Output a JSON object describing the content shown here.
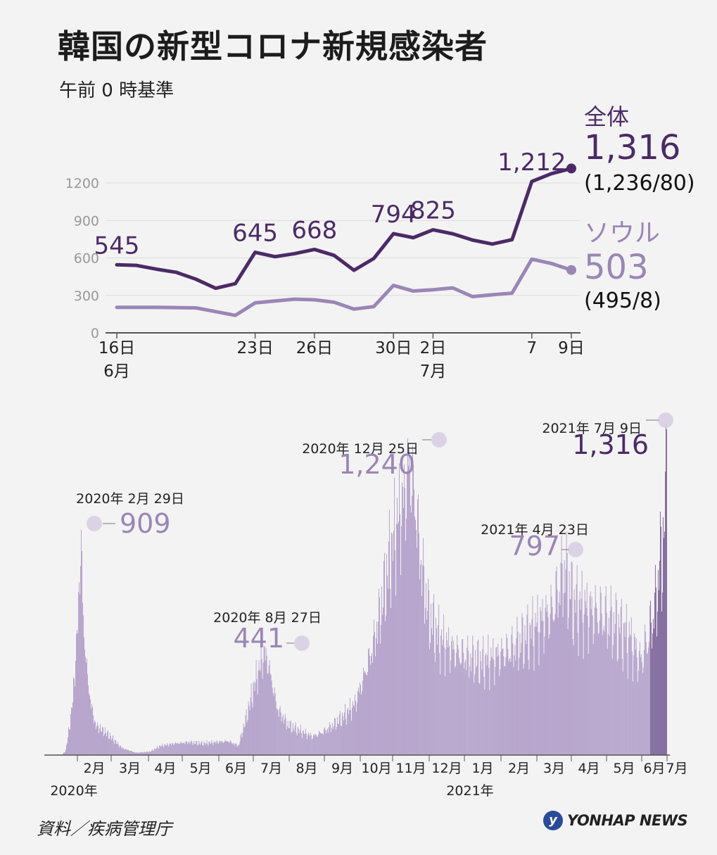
{
  "title": "韓国の新型コロナ新規感染者",
  "subtitle": "午前 0 時基準",
  "source": "資料／疾病管理庁",
  "logo": {
    "text": "YONHAP NEWS",
    "icon": "yonhap-logo-icon"
  },
  "colors": {
    "total": "#4b2a66",
    "seoul": "#9a86b5",
    "bar": "#a994c4",
    "bar_recent": "#6a4e8c",
    "marker": "#d8cfe3"
  },
  "chart_data": [
    {
      "type": "line",
      "ylim": [
        0,
        1300
      ],
      "yticks": [
        "0",
        "300",
        "600",
        "900",
        "1200"
      ],
      "x": [
        "6/16",
        "6/17",
        "6/18",
        "6/19",
        "6/20",
        "6/21",
        "6/22",
        "6/23",
        "6/24",
        "6/25",
        "6/26",
        "6/27",
        "6/28",
        "6/29",
        "6/30",
        "7/1",
        "7/2",
        "7/3",
        "7/4",
        "7/5",
        "7/6",
        "7/7",
        "7/8",
        "7/9"
      ],
      "xticks": [
        {
          "index": 0,
          "day": "16日",
          "month": "6月"
        },
        {
          "index": 7,
          "day": "23日",
          "month": ""
        },
        {
          "index": 10,
          "day": "26日",
          "month": ""
        },
        {
          "index": 14,
          "day": "30日",
          "month": ""
        },
        {
          "index": 16,
          "day": "2日",
          "month": "7月"
        },
        {
          "index": 21,
          "day": "7",
          "month": ""
        },
        {
          "index": 23,
          "day": "9日",
          "month": ""
        }
      ],
      "series": [
        {
          "name": "全体",
          "values": [
            545,
            540,
            510,
            485,
            430,
            357,
            394,
            645,
            610,
            634,
            668,
            620,
            501,
            595,
            794,
            762,
            825,
            793,
            743,
            711,
            746,
            1212,
            1275,
            1316
          ],
          "labels": [
            {
              "index": 0,
              "text": "545"
            },
            {
              "index": 7,
              "text": "645"
            },
            {
              "index": 10,
              "text": "668"
            },
            {
              "index": 14,
              "text": "794"
            },
            {
              "index": 16,
              "text": "825"
            },
            {
              "index": 21,
              "text": "1,212"
            }
          ],
          "end_value": "1,316",
          "end_breakdown": "(1,236/80)"
        },
        {
          "name": "ソウル",
          "values": [
            204,
            204,
            204,
            202,
            200,
            170,
            140,
            240,
            255,
            270,
            265,
            245,
            190,
            210,
            380,
            335,
            345,
            360,
            290,
            305,
            318,
            590,
            555,
            503
          ],
          "end_value": "503",
          "end_breakdown": "(495/8)"
        }
      ]
    },
    {
      "type": "bar",
      "ylim": [
        0,
        1316
      ],
      "months": [
        "2月",
        "3月",
        "4月",
        "5月",
        "6月",
        "7月",
        "8月",
        "9月",
        "10月",
        "11月",
        "12月",
        "1月",
        "2月",
        "3月",
        "4月",
        "5月",
        "6月",
        "7月"
      ],
      "years": [
        {
          "text": "2020年",
          "month_index": 0
        },
        {
          "text": "2021年",
          "month_index": 11
        }
      ],
      "annotations": [
        {
          "date": "2020年 2月 29日",
          "value": "909",
          "peak": 909
        },
        {
          "date": "2020年 8月 27日",
          "value": "441",
          "peak": 441
        },
        {
          "date": "2020年 12月 25日",
          "value": "1,240",
          "peak": 1240
        },
        {
          "date": "2021年 4月 23日",
          "value": "797",
          "peak": 797
        },
        {
          "date": "2021年 7月 9日",
          "value": "1,316",
          "peak": 1316
        }
      ]
    }
  ]
}
